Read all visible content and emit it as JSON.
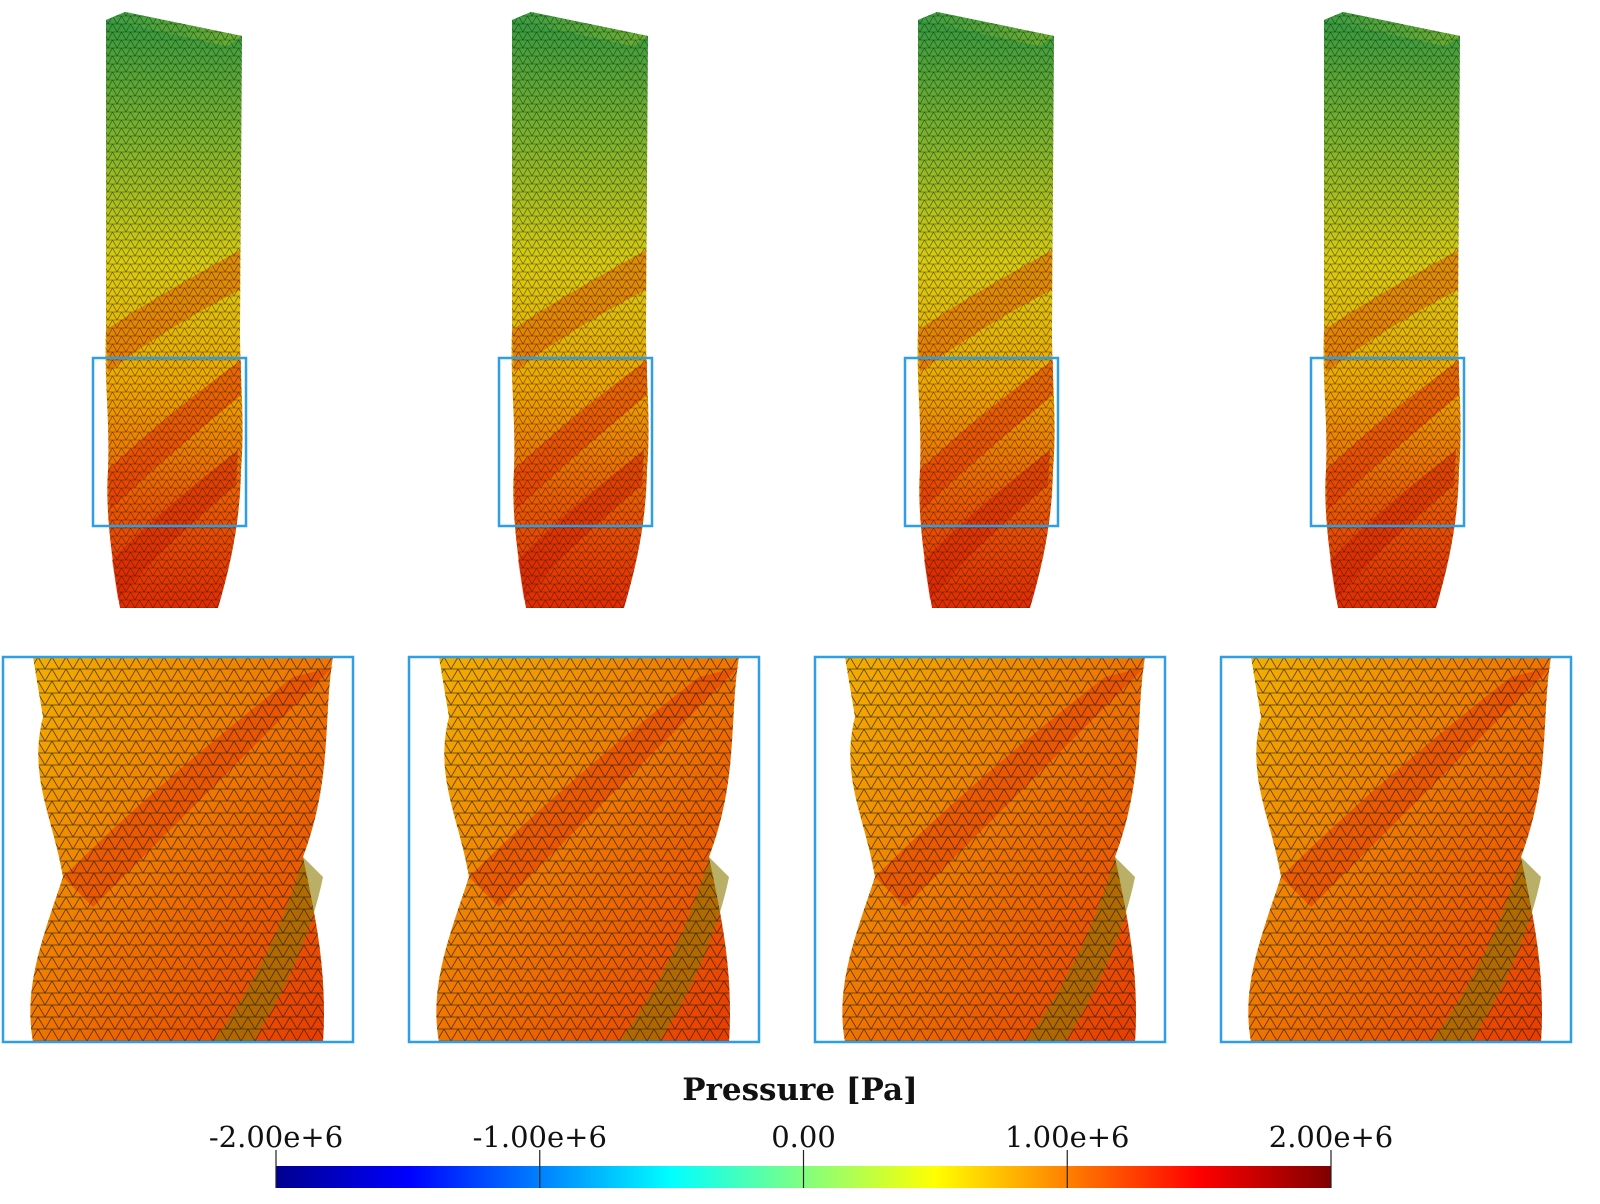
{
  "colorbar": {
    "title": "Pressure [Pa]",
    "min": -2000000,
    "max": 2000000,
    "ticks": [
      {
        "value": -2000000,
        "label": "-2.00e+6"
      },
      {
        "value": -1000000,
        "label": "-1.00e+6"
      },
      {
        "value": 0,
        "label": "0.00"
      },
      {
        "value": 1000000,
        "label": "1.00e+6"
      },
      {
        "value": 2000000,
        "label": "2.00e+6"
      }
    ],
    "colormap": [
      "#00008f",
      "#0000ff",
      "#0080ff",
      "#00ffff",
      "#80ff80",
      "#ffff00",
      "#ff8000",
      "#ff0000",
      "#800000"
    ]
  },
  "panels": [
    {
      "id": "panel-1"
    },
    {
      "id": "panel-2"
    },
    {
      "id": "panel-3"
    },
    {
      "id": "panel-4"
    }
  ],
  "colors": {
    "highlight_box": "#2e9fe6",
    "mesh_lines": "#1a1a1a",
    "top_green": "#2f9a3c",
    "mid_yellow": "#e8d000",
    "stripe_red": "#e83800"
  }
}
